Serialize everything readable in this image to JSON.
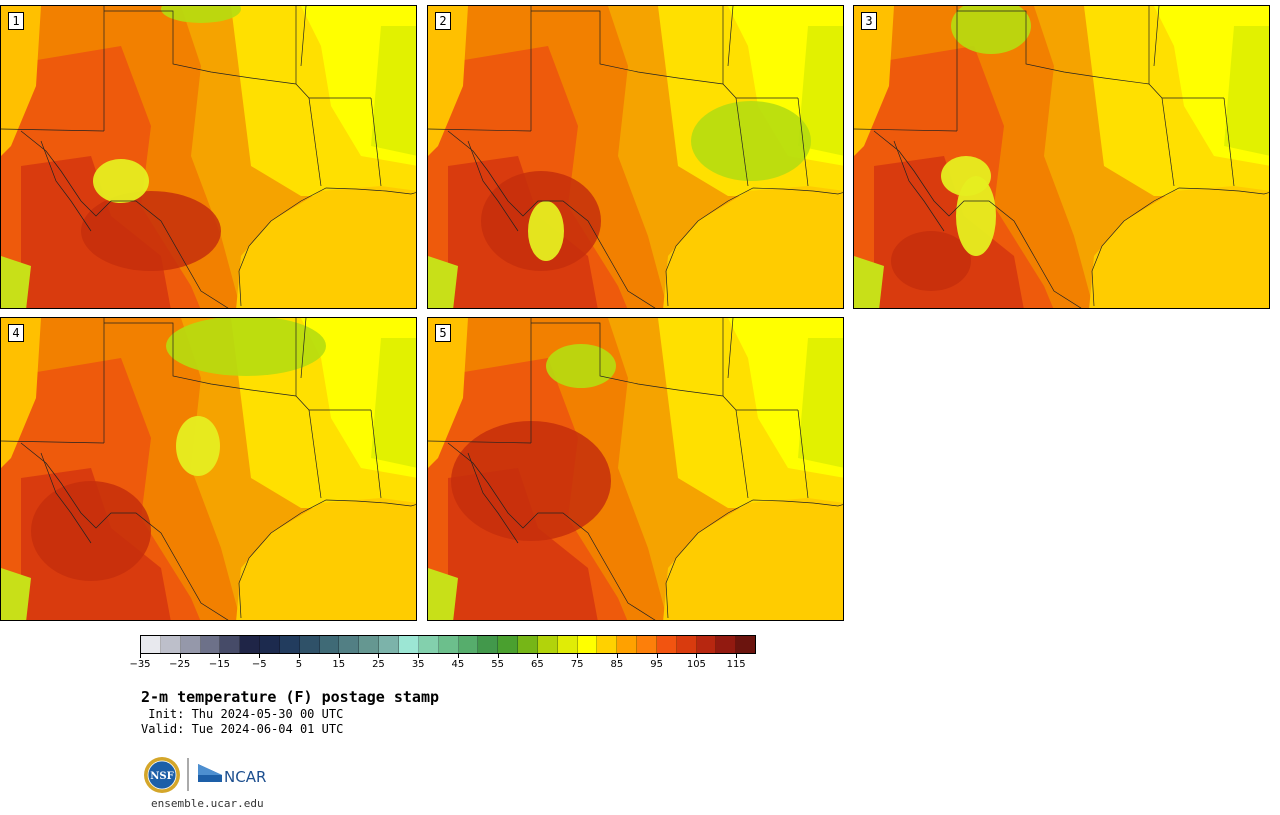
{
  "panels": [
    {
      "label": "1"
    },
    {
      "label": "2"
    },
    {
      "label": "3"
    },
    {
      "label": "4"
    },
    {
      "label": "5"
    }
  ],
  "colorbar": {
    "colors": [
      "#e8e9ee",
      "#bdbfca",
      "#9598aa",
      "#6d7189",
      "#464b68",
      "#1f2547",
      "#1c2a4e",
      "#223c5e",
      "#2f5168",
      "#3f6a76",
      "#527f84",
      "#659791",
      "#7cb3aa",
      "#9ce6d4",
      "#83d0ad",
      "#6cbf8c",
      "#56ad6c",
      "#42984b",
      "#4aa02f",
      "#76b617",
      "#b2d30b",
      "#e0ec06",
      "#ffff00",
      "#ffd100",
      "#ffa100",
      "#fd7f0a",
      "#f25410",
      "#d93b0e",
      "#b72710",
      "#921a10",
      "#6b140e"
    ],
    "tick_labels": [
      "−35",
      "−25",
      "−15",
      "−5",
      "5",
      "15",
      "25",
      "35",
      "45",
      "55",
      "65",
      "75",
      "85",
      "95",
      "105",
      "115"
    ]
  },
  "title": "2-m temperature (F) postage stamp",
  "init_line": " Init: Thu 2024-05-30 00 UTC",
  "valid_line": "Valid: Tue 2024-06-04 01 UTC",
  "logo": {
    "nsf_text": "NSF",
    "ncar_text": "NCAR"
  },
  "url": "ensemble.ucar.edu"
}
